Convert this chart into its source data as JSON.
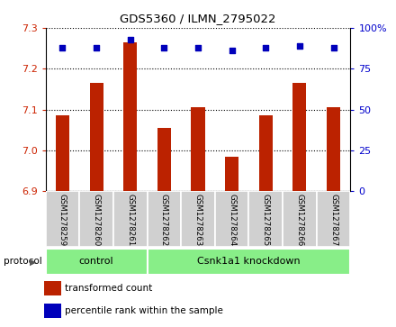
{
  "title": "GDS5360 / ILMN_2795022",
  "samples": [
    "GSM1278259",
    "GSM1278260",
    "GSM1278261",
    "GSM1278262",
    "GSM1278263",
    "GSM1278264",
    "GSM1278265",
    "GSM1278266",
    "GSM1278267"
  ],
  "bar_values": [
    7.085,
    7.165,
    7.265,
    7.055,
    7.105,
    6.985,
    7.085,
    7.165,
    7.105
  ],
  "percentile_values": [
    88,
    88,
    93,
    88,
    88,
    86,
    88,
    89,
    88
  ],
  "ylim_left": [
    6.9,
    7.3
  ],
  "ylim_right": [
    0,
    100
  ],
  "yticks_left": [
    6.9,
    7.0,
    7.1,
    7.2,
    7.3
  ],
  "yticks_right": [
    0,
    25,
    50,
    75,
    100
  ],
  "bar_color": "#bb2200",
  "dot_color": "#0000bb",
  "n_control": 3,
  "control_label": "control",
  "knockdown_label": "Csnk1a1 knockdown",
  "protocol_label": "protocol",
  "legend_bar": "transformed count",
  "legend_dot": "percentile rank within the sample",
  "background_color": "#ffffff",
  "plot_bg_color": "#ffffff",
  "left_tick_color": "#cc2200",
  "right_tick_color": "#0000cc",
  "bar_baseline": 6.9,
  "cell_bg": "#d0d0d0",
  "protocol_green": "#88ee88",
  "bar_width": 0.4
}
